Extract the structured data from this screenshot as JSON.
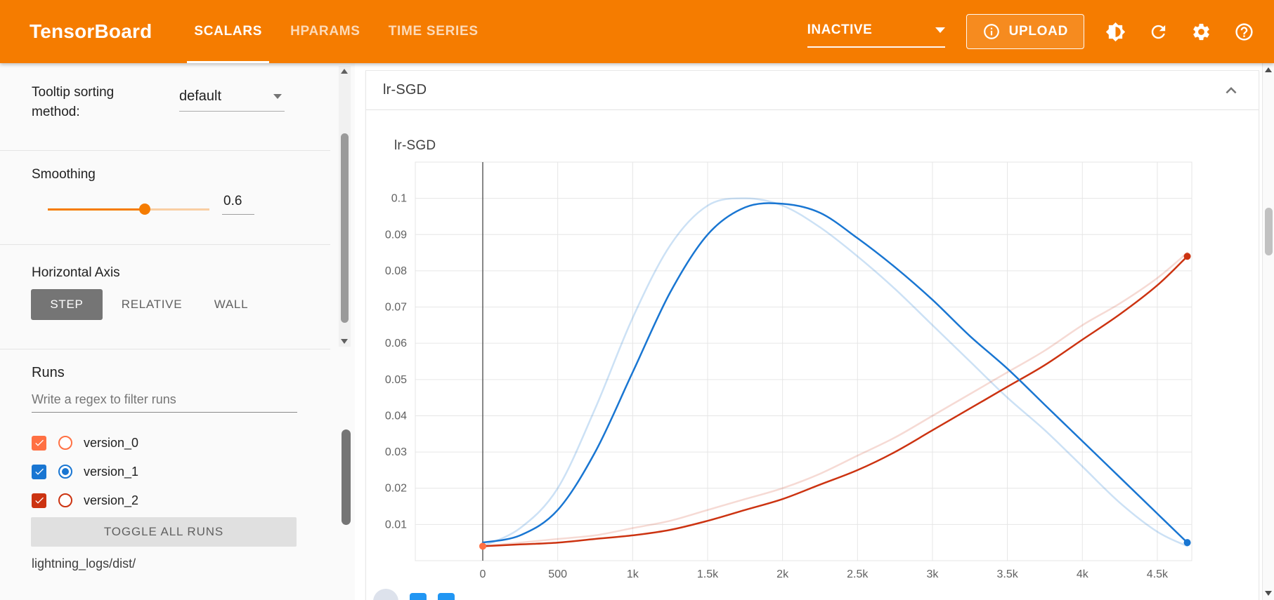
{
  "header": {
    "app_title": "TensorBoard",
    "tabs": [
      {
        "label": "SCALARS",
        "active": true
      },
      {
        "label": "HPARAMS",
        "active": false
      },
      {
        "label": "TIME SERIES",
        "active": false
      }
    ],
    "status": "INACTIVE",
    "upload": "UPLOAD",
    "icons": [
      "brightness-toggle",
      "refresh",
      "settings",
      "help"
    ]
  },
  "sidebar": {
    "tooltip_sorting_label": "Tooltip sorting method:",
    "tooltip_sorting_value": "default",
    "smoothing_label": "Smoothing",
    "smoothing_value": "0.6",
    "horizontal_axis_label": "Horizontal Axis",
    "axis_options": [
      {
        "label": "STEP",
        "active": true
      },
      {
        "label": "RELATIVE",
        "active": false
      },
      {
        "label": "WALL",
        "active": false
      }
    ],
    "runs_label": "Runs",
    "runs_filter_placeholder": "Write a regex to filter runs",
    "runs": [
      {
        "name": "version_0",
        "color": "#ff7043",
        "checked": true,
        "selected": false
      },
      {
        "name": "version_1",
        "color": "#1976d2",
        "checked": true,
        "selected": true
      },
      {
        "name": "version_2",
        "color": "#cc3311",
        "checked": true,
        "selected": false
      }
    ],
    "toggle_all_label": "TOGGLE ALL RUNS",
    "logdir": "lightning_logs/dist/"
  },
  "main": {
    "card_title": "lr-SGD"
  },
  "chart_data": {
    "type": "line",
    "title": "lr-SGD",
    "grid": true,
    "xlim": [
      -450,
      4730
    ],
    "ylim": [
      0,
      0.11
    ],
    "zero_line_x": 0,
    "x_ticks": [
      0,
      500,
      1000,
      1500,
      2000,
      2500,
      3000,
      3500,
      4000,
      4500
    ],
    "x_tick_labels": [
      "0",
      "500",
      "1k",
      "1.5k",
      "2k",
      "2.5k",
      "3k",
      "3.5k",
      "4k",
      "4.5k"
    ],
    "y_ticks": [
      0.01,
      0.02,
      0.03,
      0.04,
      0.05,
      0.06,
      0.07,
      0.08,
      0.09,
      0.1
    ],
    "y_tick_labels": [
      "0.01",
      "0.02",
      "0.03",
      "0.04",
      "0.05",
      "0.06",
      "0.07",
      "0.08",
      "0.09",
      "0.1"
    ],
    "x": [
      0,
      250,
      500,
      750,
      1000,
      1250,
      1500,
      1750,
      2000,
      2250,
      2500,
      2750,
      3000,
      3250,
      3500,
      3750,
      4000,
      4250,
      4500,
      4700
    ],
    "series": [
      {
        "name": "version_1",
        "kind": "raw",
        "color": "#1976d2",
        "opacity": 0.22,
        "width": 2.5,
        "endpoint_dot": false,
        "y": [
          0.004,
          0.009,
          0.02,
          0.042,
          0.067,
          0.087,
          0.098,
          0.1,
          0.098,
          0.092,
          0.084,
          0.075,
          0.065,
          0.055,
          0.045,
          0.036,
          0.026,
          0.016,
          0.008,
          0.004
        ]
      },
      {
        "name": "version_2",
        "kind": "raw",
        "color": "#cc3311",
        "opacity": 0.18,
        "width": 2.5,
        "endpoint_dot": false,
        "y": [
          0.004,
          0.005,
          0.006,
          0.007,
          0.009,
          0.011,
          0.014,
          0.017,
          0.02,
          0.024,
          0.029,
          0.034,
          0.04,
          0.046,
          0.052,
          0.058,
          0.065,
          0.071,
          0.078,
          0.085
        ]
      },
      {
        "name": "version_2",
        "kind": "smoothed",
        "color": "#cc3311",
        "opacity": 1,
        "width": 2.5,
        "endpoint_dot": true,
        "y": [
          0.004,
          0.0045,
          0.005,
          0.006,
          0.007,
          0.0085,
          0.011,
          0.014,
          0.017,
          0.021,
          0.025,
          0.03,
          0.036,
          0.042,
          0.048,
          0.054,
          0.061,
          0.068,
          0.076,
          0.084
        ]
      },
      {
        "name": "version_1",
        "kind": "smoothed",
        "color": "#1976d2",
        "opacity": 1,
        "width": 2.5,
        "endpoint_dot": true,
        "y": [
          0.005,
          0.007,
          0.014,
          0.03,
          0.052,
          0.074,
          0.09,
          0.0975,
          0.0985,
          0.096,
          0.089,
          0.081,
          0.072,
          0.062,
          0.053,
          0.043,
          0.033,
          0.023,
          0.013,
          0.005
        ]
      }
    ],
    "points": [
      {
        "name": "version_0",
        "color": "#ff7043",
        "x": 0,
        "y": 0.004
      }
    ]
  }
}
